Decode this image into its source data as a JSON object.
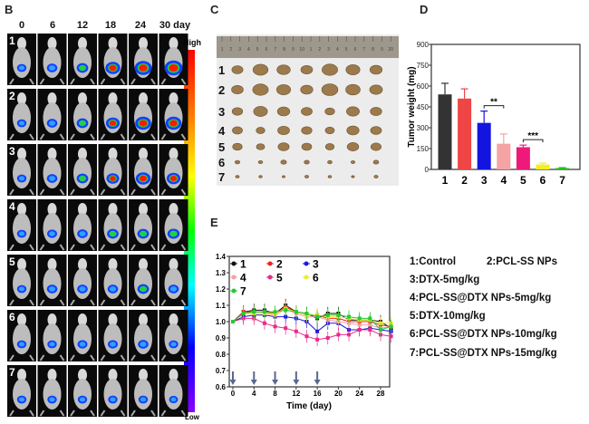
{
  "panels": {
    "b": "B",
    "c": "C",
    "d": "D",
    "e": "E"
  },
  "imaging": {
    "days": [
      "0",
      "6",
      "12",
      "18",
      "24",
      "30 day"
    ],
    "rows": [
      "1",
      "2",
      "3",
      "4",
      "5",
      "6",
      "7"
    ],
    "colorbar_high": "High",
    "colorbar_low": "Low",
    "signal": [
      [
        0.2,
        0.3,
        0.4,
        0.7,
        0.9,
        1.0
      ],
      [
        0.2,
        0.3,
        0.4,
        0.6,
        0.8,
        0.8
      ],
      [
        0.2,
        0.3,
        0.4,
        0.5,
        0.7,
        0.6
      ],
      [
        0.2,
        0.25,
        0.3,
        0.4,
        0.4,
        0.45
      ],
      [
        0.2,
        0.3,
        0.3,
        0.3,
        0.4,
        0.3
      ],
      [
        0.2,
        0.2,
        0.25,
        0.25,
        0.3,
        0.2
      ],
      [
        0.2,
        0.2,
        0.2,
        0.2,
        0.2,
        0.15
      ]
    ]
  },
  "photo": {
    "rows": [
      "1",
      "2",
      "3",
      "4",
      "5",
      "6",
      "7"
    ],
    "ruler_marks": [
      "1",
      "2",
      "3",
      "4",
      "5",
      "6",
      "7",
      "8",
      "9",
      "10",
      "1",
      "2",
      "3",
      "4",
      "5",
      "6",
      "7",
      "8",
      "9",
      "20"
    ]
  },
  "chart_data": [
    {
      "type": "bar",
      "title": "",
      "xlabel": "",
      "ylabel": "Tumor weight (mg)",
      "categories": [
        "1",
        "2",
        "3",
        "4",
        "5",
        "6",
        "7"
      ],
      "values": [
        540,
        510,
        335,
        185,
        160,
        35,
        10
      ],
      "errors": [
        80,
        70,
        85,
        70,
        15,
        10,
        3
      ],
      "colors": [
        "#333333",
        "#f04545",
        "#1414e0",
        "#f5a3a3",
        "#ee1a7a",
        "#f2f020",
        "#22c022"
      ],
      "ylim": [
        0,
        900
      ],
      "yticks": [
        "0",
        "150",
        "300",
        "450",
        "600",
        "750",
        "900"
      ],
      "significance": [
        {
          "between": [
            "3",
            "4"
          ],
          "label": "**"
        },
        {
          "between": [
            "5",
            "6"
          ],
          "label": "***"
        }
      ]
    },
    {
      "type": "line",
      "title": "",
      "xlabel": "Time (day)",
      "ylabel": "",
      "x": [
        0,
        2,
        4,
        6,
        8,
        10,
        12,
        14,
        16,
        18,
        20,
        22,
        24,
        26,
        28,
        30
      ],
      "xticks": [
        "0",
        "4",
        "8",
        "12",
        "16",
        "20",
        "24",
        "28"
      ],
      "yticks": [
        "0.6",
        "0.7",
        "0.8",
        "0.9",
        "1.0",
        "1.1",
        "1.2",
        "1.3",
        "1.4"
      ],
      "ylim": [
        0.6,
        1.4
      ],
      "dosing_days": [
        0,
        4,
        8,
        12,
        16
      ],
      "series": [
        {
          "name": "1",
          "color": "#111111",
          "values": [
            1.0,
            1.06,
            1.07,
            1.07,
            1.05,
            1.1,
            1.06,
            1.05,
            1.02,
            1.05,
            1.05,
            1.01,
            1.01,
            1.01,
            1.0,
            0.96
          ]
        },
        {
          "name": "2",
          "color": "#f02020",
          "values": [
            1.0,
            1.06,
            1.06,
            1.06,
            1.05,
            1.09,
            1.06,
            1.04,
            1.04,
            1.02,
            1.02,
            1.0,
            1.0,
            1.0,
            0.98,
            0.97
          ]
        },
        {
          "name": "3",
          "color": "#1a1ae0",
          "values": [
            1.0,
            1.03,
            1.04,
            1.04,
            1.03,
            1.03,
            1.02,
            1.0,
            0.94,
            0.99,
            0.99,
            0.95,
            0.95,
            0.96,
            0.95,
            0.94
          ]
        },
        {
          "name": "4",
          "color": "#f5a0a0",
          "values": [
            1.0,
            1.05,
            1.05,
            1.05,
            1.04,
            1.08,
            1.05,
            1.03,
            1.03,
            1.01,
            1.0,
            0.99,
            0.98,
            0.98,
            0.96,
            0.97
          ]
        },
        {
          "name": "5",
          "color": "#e82a8a",
          "values": [
            1.0,
            1.02,
            1.02,
            0.99,
            0.97,
            0.96,
            0.94,
            0.91,
            0.89,
            0.9,
            0.92,
            0.92,
            0.95,
            0.95,
            0.92,
            0.91
          ]
        },
        {
          "name": "6",
          "color": "#eeee20",
          "values": [
            1.0,
            1.05,
            1.05,
            1.05,
            1.05,
            1.08,
            1.06,
            1.04,
            1.04,
            1.03,
            1.03,
            1.02,
            1.01,
            1.01,
            0.99,
            0.99
          ]
        },
        {
          "name": "7",
          "color": "#22cc33",
          "values": [
            1.0,
            1.05,
            1.06,
            1.06,
            1.06,
            1.07,
            1.06,
            1.05,
            1.03,
            1.04,
            1.04,
            1.03,
            1.02,
            1.02,
            0.95,
            0.97
          ]
        }
      ],
      "error": 0.04
    }
  ],
  "legend": [
    "1:Control",
    "2:PCL-SS NPs",
    "3:DTX-5mg/kg",
    "4:PCL-SS@DTX NPs-5mg/kg",
    "5:DTX-10mg/kg",
    "6:PCL-SS@DTX NPs-10mg/kg",
    "7:PCL-SS@DTX NPs-15mg/kg"
  ]
}
